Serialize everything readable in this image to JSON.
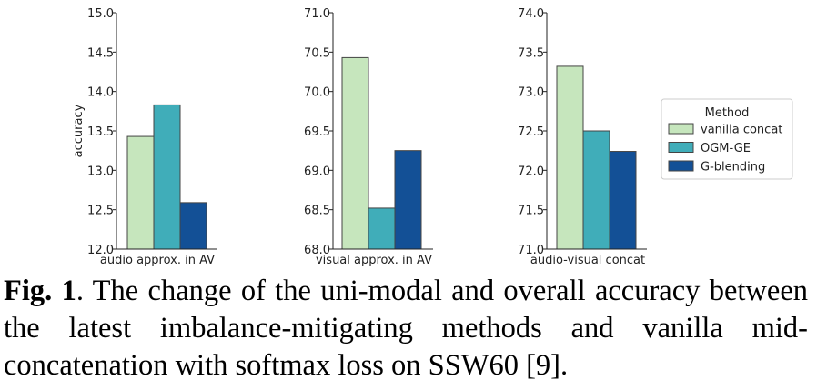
{
  "chart_data": [
    {
      "type": "bar",
      "categories": [
        "vanilla concat",
        "OGM-GE",
        "G-blending"
      ],
      "values": [
        13.43,
        13.83,
        12.59
      ],
      "xlabel": "audio approx. in AV",
      "ylabel": "accuracy",
      "ylim": [
        12.0,
        15.0
      ],
      "yticks": [
        "12.0",
        "12.5",
        "13.0",
        "13.5",
        "14.0",
        "14.5",
        "15.0"
      ]
    },
    {
      "type": "bar",
      "categories": [
        "vanilla concat",
        "OGM-GE",
        "G-blending"
      ],
      "values": [
        70.43,
        68.52,
        69.25
      ],
      "xlabel": "visual approx. in AV",
      "ylabel": "",
      "ylim": [
        68.0,
        71.0
      ],
      "yticks": [
        "68.0",
        "68.5",
        "69.0",
        "69.5",
        "70.0",
        "70.5",
        "71.0"
      ]
    },
    {
      "type": "bar",
      "categories": [
        "vanilla concat",
        "OGM-GE",
        "G-blending"
      ],
      "values": [
        73.32,
        72.5,
        72.24
      ],
      "xlabel": "audio-visual concat",
      "ylabel": "",
      "ylim": [
        71.0,
        74.0
      ],
      "yticks": [
        "71.0",
        "71.5",
        "72.0",
        "72.5",
        "73.0",
        "73.5",
        "74.0"
      ]
    }
  ],
  "legend": {
    "title": "Method",
    "position": "right",
    "entries": [
      {
        "label": "vanilla concat",
        "color": "#c6e6bd"
      },
      {
        "label": "OGM-GE",
        "color": "#40adb9"
      },
      {
        "label": "G-blending",
        "color": "#135096"
      }
    ]
  },
  "caption": {
    "label": "Fig. 1",
    "text": ".  The change of the uni-modal and overall accuracy between the latest imbalance-mitigating methods and vanilla mid-concatenation with softmax loss on SSW60 [9]."
  }
}
